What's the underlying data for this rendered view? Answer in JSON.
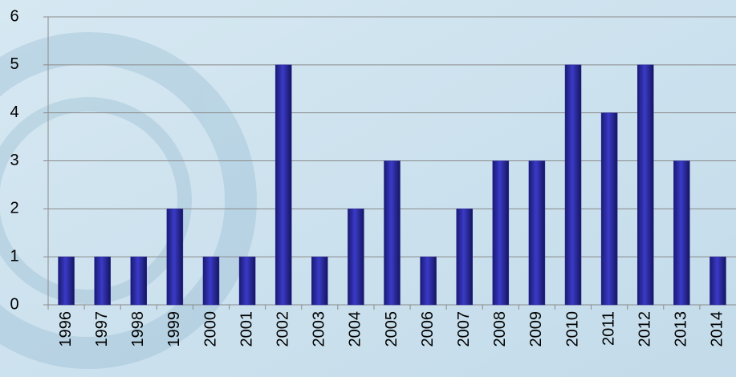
{
  "chart_data": {
    "type": "bar",
    "categories": [
      "1996",
      "1997",
      "1998",
      "1999",
      "2000",
      "2001",
      "2002",
      "2003",
      "2004",
      "2005",
      "2006",
      "2007",
      "2008",
      "2009",
      "2010",
      "2011",
      "2012",
      "2013",
      "2014"
    ],
    "values": [
      1,
      1,
      1,
      2,
      1,
      1,
      5,
      1,
      2,
      3,
      1,
      2,
      3,
      3,
      5,
      4,
      5,
      3,
      1
    ],
    "color": "#2a2aa0",
    "ylim": [
      0,
      6
    ],
    "yticks": [
      0,
      1,
      2,
      3,
      4,
      5,
      6
    ],
    "grid": true
  }
}
